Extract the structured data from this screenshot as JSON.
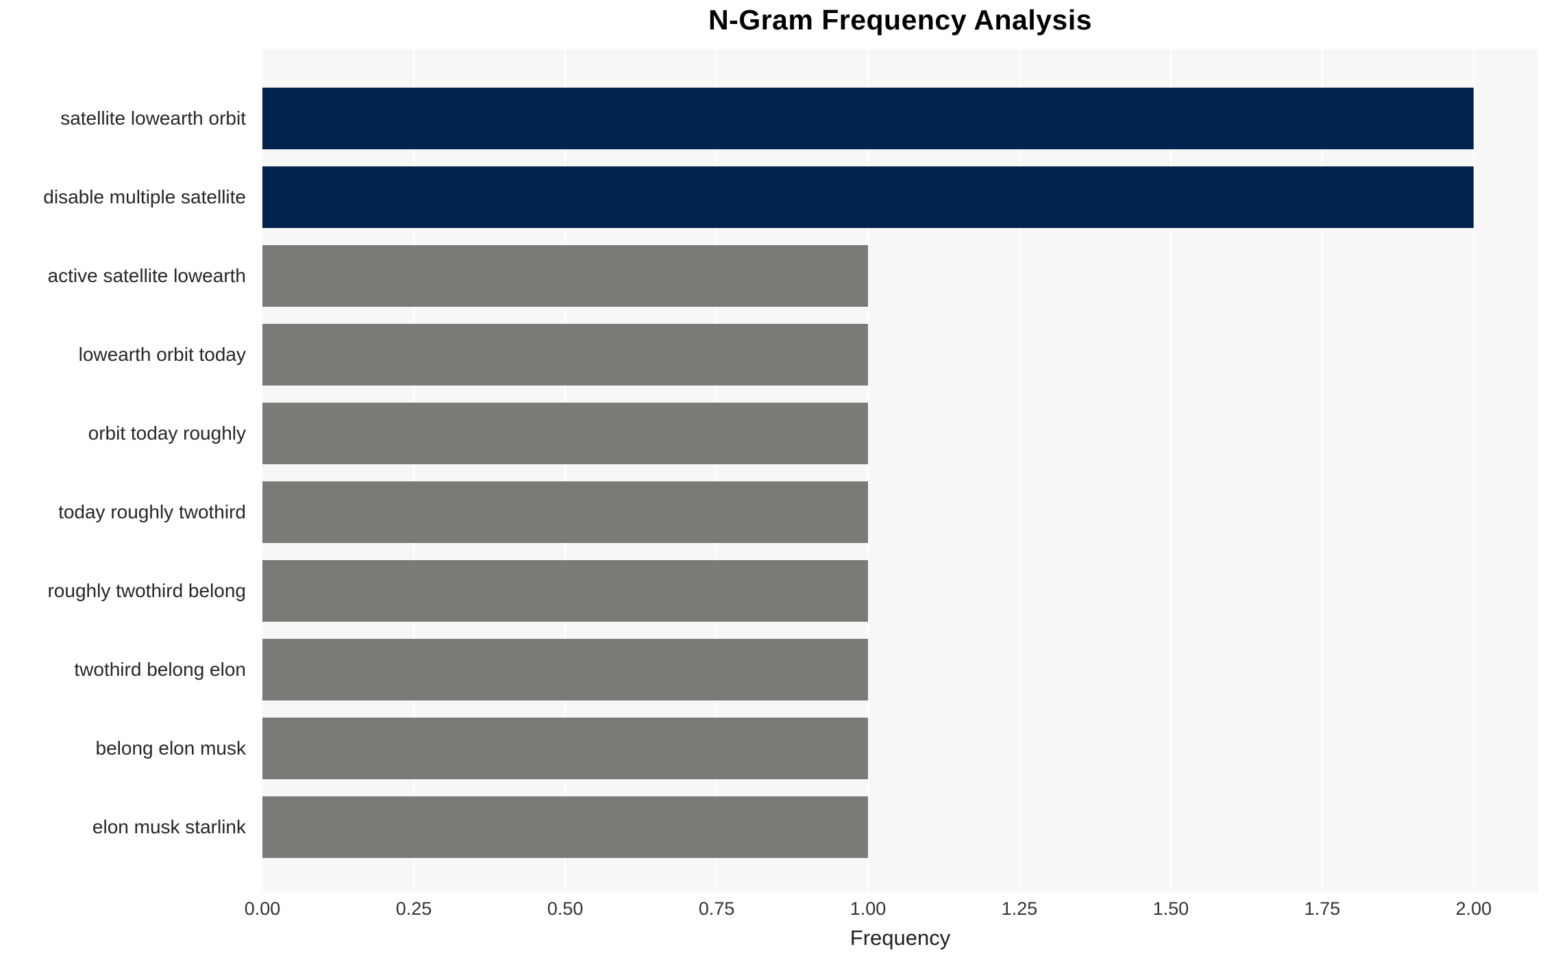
{
  "chart_data": {
    "type": "bar",
    "orientation": "horizontal",
    "title": "N-Gram Frequency Analysis",
    "xlabel": "Frequency",
    "ylabel": "",
    "categories": [
      "satellite lowearth orbit",
      "disable multiple satellite",
      "active satellite lowearth",
      "lowearth orbit today",
      "orbit today roughly",
      "today roughly twothird",
      "roughly twothird belong",
      "twothird belong elon",
      "belong elon musk",
      "elon musk starlink"
    ],
    "values": [
      2,
      2,
      1,
      1,
      1,
      1,
      1,
      1,
      1,
      1
    ],
    "bar_colors": [
      "#02234d",
      "#02234d",
      "#7b7a76",
      "#7b7a76",
      "#7b7a76",
      "#7b7a76",
      "#7b7a76",
      "#7b7a76",
      "#7b7a76",
      "#7b7a76"
    ],
    "xlim": [
      0,
      2.105
    ],
    "xtick_values": [
      0,
      0.25,
      0.5,
      0.75,
      1,
      1.25,
      1.5,
      1.75,
      2
    ],
    "xtick_labels": [
      "0.00",
      "0.25",
      "0.50",
      "0.75",
      "1.00",
      "1.25",
      "1.50",
      "1.75",
      "2.00"
    ],
    "grid": {
      "vertical": true,
      "color": "#ffffff"
    },
    "plot_background": "#f7f7f7",
    "legend": "none"
  }
}
